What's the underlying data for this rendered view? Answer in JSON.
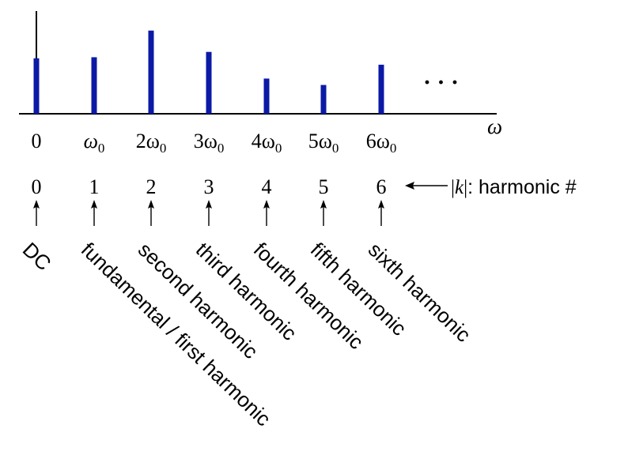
{
  "axis": {
    "omega_label": "ω"
  },
  "spectrum": {
    "values": [
      0.52,
      0.53,
      0.78,
      0.58,
      0.33,
      0.27,
      0.46
    ],
    "bar_color": "#0b1aa6",
    "continuation": "· · ·"
  },
  "frequency_ticks": [
    {
      "main": "0",
      "sub": ""
    },
    {
      "main": "ω",
      "sub": "0"
    },
    {
      "main": "2ω",
      "sub": "0"
    },
    {
      "main": "3ω",
      "sub": "0"
    },
    {
      "main": "4ω",
      "sub": "0"
    },
    {
      "main": "5ω",
      "sub": "0"
    },
    {
      "main": "6ω",
      "sub": "0"
    }
  ],
  "harmonic_numbers": [
    "0",
    "1",
    "2",
    "3",
    "4",
    "5",
    "6"
  ],
  "harmonic_label": {
    "bar_left": "|",
    "k": "k",
    "bar_right": "|",
    "text": ": harmonic #"
  },
  "harmonic_names": [
    "DC",
    "fundamental / first harmonic",
    "second harmonic",
    "third harmonic",
    "fourth harmonic",
    "fifth harmonic",
    "sixth harmonic"
  ]
}
